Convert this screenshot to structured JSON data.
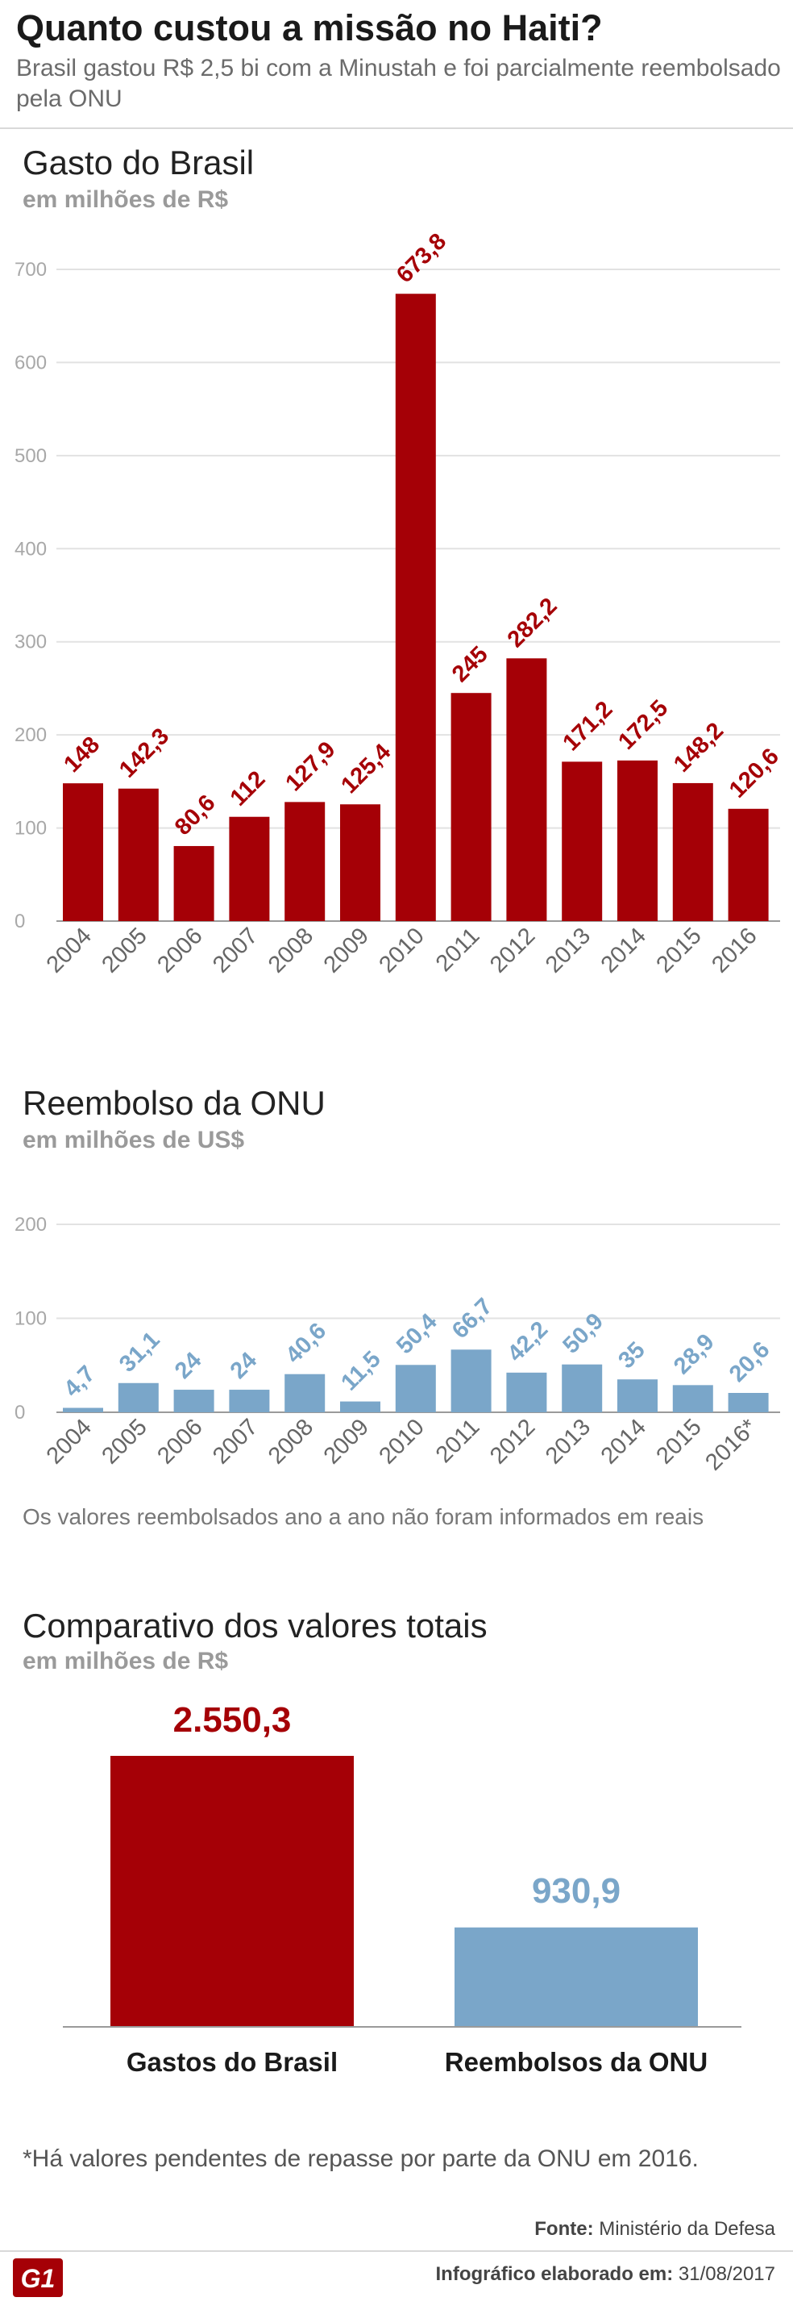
{
  "header": {
    "title": "Quanto custou a missão no Haiti?",
    "subtitle": "Brasil gastou R$ 2,5 bi com a Minustah e foi parcialmente reembolsado pela ONU"
  },
  "colors": {
    "red": "#a50006",
    "blue": "#7aa6c9",
    "grid": "#e2e2e2",
    "axis": "#9a9a9a"
  },
  "chart_data": [
    {
      "type": "bar",
      "title": "Gasto do Brasil",
      "subtitle": "em milhões de R$",
      "categories": [
        "2004",
        "2005",
        "2006",
        "2007",
        "2008",
        "2009",
        "2010",
        "2011",
        "2012",
        "2013",
        "2014",
        "2015",
        "2016"
      ],
      "values": [
        148,
        142.3,
        80.6,
        112,
        127.9,
        125.4,
        673.8,
        245,
        282.2,
        171.2,
        172.5,
        148.2,
        120.6
      ],
      "labels": [
        "148",
        "142,3",
        "80,6",
        "112",
        "127,9",
        "125,4",
        "673,8",
        "245",
        "282,2",
        "171,2",
        "172,5",
        "148,2",
        "120,6"
      ],
      "ylim": [
        0,
        700
      ],
      "yticks": [
        0,
        100,
        200,
        300,
        400,
        500,
        600,
        700
      ],
      "color": "#a50006",
      "xlabel": "",
      "ylabel": ""
    },
    {
      "type": "bar",
      "title": "Reembolso da ONU",
      "subtitle": "em milhões de US$",
      "categories": [
        "2004",
        "2005",
        "2006",
        "2007",
        "2008",
        "2009",
        "2010",
        "2011",
        "2012",
        "2013",
        "2014",
        "2015",
        "2016*"
      ],
      "values": [
        4.7,
        31.1,
        24,
        24,
        40.6,
        11.5,
        50.4,
        66.7,
        42.2,
        50.9,
        35,
        28.9,
        20.6
      ],
      "labels": [
        "4,7",
        "31,1",
        "24",
        "24",
        "40,6",
        "11,5",
        "50,4",
        "66,7",
        "42,2",
        "50,9",
        "35",
        "28,9",
        "20,6"
      ],
      "ylim": [
        0,
        200
      ],
      "yticks": [
        0,
        100,
        200
      ],
      "color": "#7aa6c9",
      "note": "Os valores reembolsados ano a ano não foram informados em reais",
      "xlabel": "",
      "ylabel": ""
    },
    {
      "type": "bar",
      "title": "Comparativo dos valores totais",
      "subtitle": "em milhões de R$",
      "categories": [
        "Gastos do Brasil",
        "Reembolsos da ONU"
      ],
      "values": [
        2550.3,
        930.9
      ],
      "labels": [
        "2.550,3",
        "930,9"
      ],
      "colors": [
        "#a50006",
        "#7aa6c9"
      ],
      "ylim": [
        0,
        2550.3
      ]
    }
  ],
  "footnote": "*Há valores pendentes de repasse por parte da ONU em 2016.",
  "source": {
    "label": "Fonte:",
    "value": "Ministério da Defesa"
  },
  "credit": {
    "label": "Infográfico elaborado em:",
    "value": "31/08/2017"
  },
  "logo_text": "G1"
}
